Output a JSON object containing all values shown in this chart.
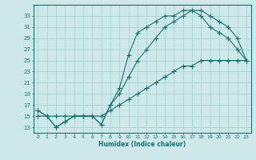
{
  "xlabel": "Humidex (Indice chaleur)",
  "bg_color": "#cce8e8",
  "grid_color": "#aad4d4",
  "line_color": "#1a7070",
  "xlim": [
    -0.5,
    23.5
  ],
  "ylim": [
    12,
    35
  ],
  "yticks": [
    13,
    15,
    17,
    19,
    21,
    23,
    25,
    27,
    29,
    31,
    33
  ],
  "xticks": [
    0,
    1,
    2,
    3,
    4,
    5,
    6,
    7,
    8,
    9,
    10,
    11,
    12,
    13,
    14,
    15,
    16,
    17,
    18,
    19,
    20,
    21,
    22,
    23
  ],
  "line1_x": [
    0,
    1,
    2,
    3,
    4,
    5,
    6,
    7,
    8,
    9,
    10,
    11,
    12,
    13,
    14,
    15,
    16,
    17,
    18,
    19,
    20,
    21,
    22,
    23
  ],
  "line1_y": [
    16,
    15,
    13,
    14,
    15,
    15,
    15,
    13.5,
    17,
    20,
    26,
    30,
    31,
    32,
    33,
    33,
    34,
    34,
    33,
    31,
    30,
    29,
    27,
    25
  ],
  "line2_x": [
    0,
    1,
    2,
    3,
    4,
    5,
    6,
    7,
    8,
    9,
    10,
    11,
    12,
    13,
    14,
    15,
    16,
    17,
    18,
    19,
    20,
    21,
    22,
    23
  ],
  "line2_y": [
    16,
    15,
    13,
    14,
    15,
    15,
    15,
    13.5,
    17,
    19,
    22,
    25,
    27,
    29,
    31,
    32,
    33,
    34,
    34,
    33,
    32,
    31,
    29,
    25
  ],
  "line3_x": [
    0,
    1,
    2,
    3,
    4,
    5,
    6,
    7,
    8,
    9,
    10,
    11,
    12,
    13,
    14,
    15,
    16,
    17,
    18,
    19,
    20,
    21,
    22,
    23
  ],
  "line3_y": [
    15,
    15,
    15,
    15,
    15,
    15,
    15,
    15,
    16,
    17,
    18,
    19,
    20,
    21,
    22,
    23,
    24,
    24,
    25,
    25,
    25,
    25,
    25,
    25
  ]
}
